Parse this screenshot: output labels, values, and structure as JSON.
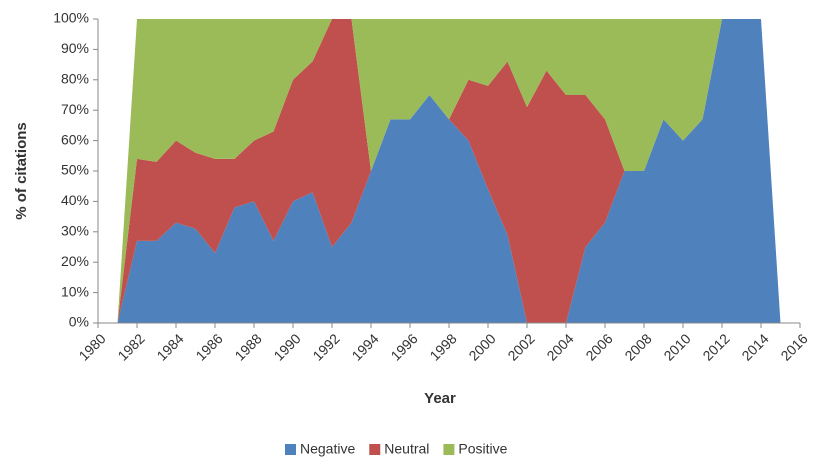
{
  "chart_data": {
    "type": "area",
    "stacked": true,
    "xlabel": "Year",
    "ylabel": "% of citations",
    "x": [
      1981,
      1982,
      1983,
      1984,
      1985,
      1986,
      1987,
      1988,
      1989,
      1990,
      1991,
      1992,
      1993,
      1994,
      1995,
      1996,
      1997,
      1998,
      1999,
      2000,
      2001,
      2002,
      2003,
      2004,
      2005,
      2006,
      2007,
      2008,
      2009,
      2010,
      2011,
      2012,
      2013,
      2014,
      2015
    ],
    "series": [
      {
        "name": "Negative",
        "color": "#4f81bd",
        "values": [
          0,
          27,
          27,
          33,
          31,
          23,
          38,
          40,
          27,
          40,
          43,
          25,
          33,
          50,
          67,
          67,
          75,
          67,
          60,
          44,
          29,
          0,
          0,
          0,
          25,
          33,
          50,
          50,
          67,
          60,
          67,
          100,
          100,
          100,
          0
        ]
      },
      {
        "name": "Neutral",
        "color": "#c0504d",
        "values": [
          0,
          27,
          26,
          27,
          25,
          31,
          16,
          20,
          36,
          40,
          43,
          75,
          67,
          0,
          0,
          0,
          0,
          0,
          20,
          34,
          57,
          71,
          83,
          75,
          50,
          34,
          0,
          0,
          0,
          0,
          0,
          0,
          0,
          0,
          0
        ]
      },
      {
        "name": "Positive",
        "color": "#9bbb59",
        "values": [
          0,
          46,
          47,
          40,
          44,
          46,
          46,
          40,
          37,
          20,
          14,
          0,
          0,
          50,
          33,
          33,
          25,
          33,
          20,
          22,
          14,
          29,
          17,
          25,
          25,
          33,
          50,
          50,
          33,
          40,
          33,
          0,
          0,
          0,
          0
        ]
      }
    ],
    "xlim": [
      1980,
      2016
    ],
    "xticks": [
      1980,
      1982,
      1984,
      1986,
      1988,
      1990,
      1992,
      1994,
      1996,
      1998,
      2000,
      2002,
      2004,
      2006,
      2008,
      2010,
      2012,
      2014,
      2016
    ],
    "ylim": [
      0,
      100
    ],
    "yticks": [
      {
        "value": 0,
        "label": "0%"
      },
      {
        "value": 10,
        "label": "10%"
      },
      {
        "value": 20,
        "label": "20%"
      },
      {
        "value": 30,
        "label": "30%"
      },
      {
        "value": 40,
        "label": "40%"
      },
      {
        "value": 50,
        "label": "50%"
      },
      {
        "value": 60,
        "label": "60%"
      },
      {
        "value": 70,
        "label": "70%"
      },
      {
        "value": 80,
        "label": "80%"
      },
      {
        "value": 90,
        "label": "90%"
      },
      {
        "value": 100,
        "label": "100%"
      }
    ],
    "legend": "bottom"
  }
}
